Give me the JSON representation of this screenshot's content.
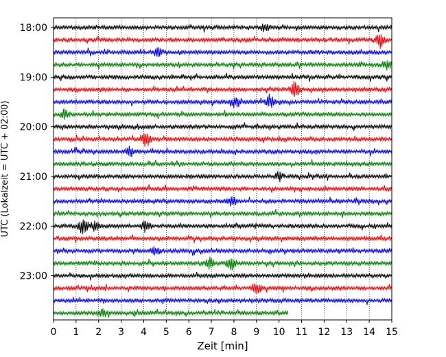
{
  "chart_data": {
    "type": "line",
    "title": "",
    "xlabel": "Zeit  [min]",
    "ylabel": "UTC (Lokalzeit = UTC + 02:00)",
    "xlim": [
      0,
      15
    ],
    "x_ticks": [
      0,
      1,
      2,
      3,
      4,
      5,
      6,
      7,
      8,
      9,
      10,
      11,
      12,
      13,
      14,
      15
    ],
    "y_tick_labels": [
      "18:00",
      "19:00",
      "20:00",
      "21:00",
      "22:00",
      "23:00"
    ],
    "grid": "vertical-dotted",
    "colors": [
      "#000000",
      "#ff0000",
      "#0000ff",
      "#008000"
    ],
    "traces": [
      {
        "start": "18:00",
        "end_min": 15,
        "color": "#000000"
      },
      {
        "start": "18:15",
        "end_min": 15,
        "color": "#ff0000"
      },
      {
        "start": "18:30",
        "end_min": 15,
        "color": "#0000ff"
      },
      {
        "start": "18:45",
        "end_min": 15,
        "color": "#008000"
      },
      {
        "start": "19:00",
        "end_min": 15,
        "color": "#000000"
      },
      {
        "start": "19:15",
        "end_min": 15,
        "color": "#ff0000"
      },
      {
        "start": "19:30",
        "end_min": 15,
        "color": "#0000ff"
      },
      {
        "start": "19:45",
        "end_min": 15,
        "color": "#008000"
      },
      {
        "start": "20:00",
        "end_min": 15,
        "color": "#000000"
      },
      {
        "start": "20:15",
        "end_min": 15,
        "color": "#ff0000"
      },
      {
        "start": "20:30",
        "end_min": 15,
        "color": "#0000ff"
      },
      {
        "start": "20:45",
        "end_min": 15,
        "color": "#008000"
      },
      {
        "start": "21:00",
        "end_min": 15,
        "color": "#000000"
      },
      {
        "start": "21:15",
        "end_min": 15,
        "color": "#ff0000"
      },
      {
        "start": "21:30",
        "end_min": 15,
        "color": "#0000ff"
      },
      {
        "start": "21:45",
        "end_min": 15,
        "color": "#008000"
      },
      {
        "start": "22:00",
        "end_min": 15,
        "color": "#000000"
      },
      {
        "start": "22:15",
        "end_min": 15,
        "color": "#ff0000"
      },
      {
        "start": "22:30",
        "end_min": 15,
        "color": "#0000ff"
      },
      {
        "start": "22:45",
        "end_min": 15,
        "color": "#008000"
      },
      {
        "start": "23:00",
        "end_min": 15,
        "color": "#000000"
      },
      {
        "start": "23:15",
        "end_min": 15,
        "color": "#ff0000"
      },
      {
        "start": "23:30",
        "end_min": 15,
        "color": "#0000ff"
      },
      {
        "start": "23:45",
        "end_min": 10.4,
        "color": "#008000"
      }
    ],
    "events": [
      {
        "trace": "19:15",
        "min": 10.7,
        "amp": 2.2
      },
      {
        "trace": "19:30",
        "min": 9.6,
        "amp": 1.6
      },
      {
        "trace": "19:30",
        "min": 8.0,
        "amp": 1.2
      },
      {
        "trace": "20:15",
        "min": 4.1,
        "amp": 1.8
      },
      {
        "trace": "20:30",
        "min": 3.4,
        "amp": 1.2
      },
      {
        "trace": "21:00",
        "min": 10.0,
        "amp": 1.0
      },
      {
        "trace": "21:30",
        "min": 7.9,
        "amp": 1.2
      },
      {
        "trace": "22:00",
        "min": 1.3,
        "amp": 2.0
      },
      {
        "trace": "22:00",
        "min": 4.1,
        "amp": 1.4
      },
      {
        "trace": "22:00",
        "min": 1.8,
        "amp": 1.2
      },
      {
        "trace": "22:30",
        "min": 4.5,
        "amp": 1.0
      },
      {
        "trace": "22:45",
        "min": 6.9,
        "amp": 1.4
      },
      {
        "trace": "22:45",
        "min": 7.9,
        "amp": 1.6
      },
      {
        "trace": "23:15",
        "min": 9.0,
        "amp": 1.2
      },
      {
        "trace": "23:45",
        "min": 2.2,
        "amp": 0.9
      },
      {
        "trace": "18:00",
        "min": 9.4,
        "amp": 1.2
      },
      {
        "trace": "18:15",
        "min": 14.5,
        "amp": 1.3
      },
      {
        "trace": "18:30",
        "min": 4.6,
        "amp": 1.0
      },
      {
        "trace": "18:45",
        "min": 14.8,
        "amp": 1.0
      },
      {
        "trace": "19:45",
        "min": 0.5,
        "amp": 1.0
      }
    ]
  }
}
